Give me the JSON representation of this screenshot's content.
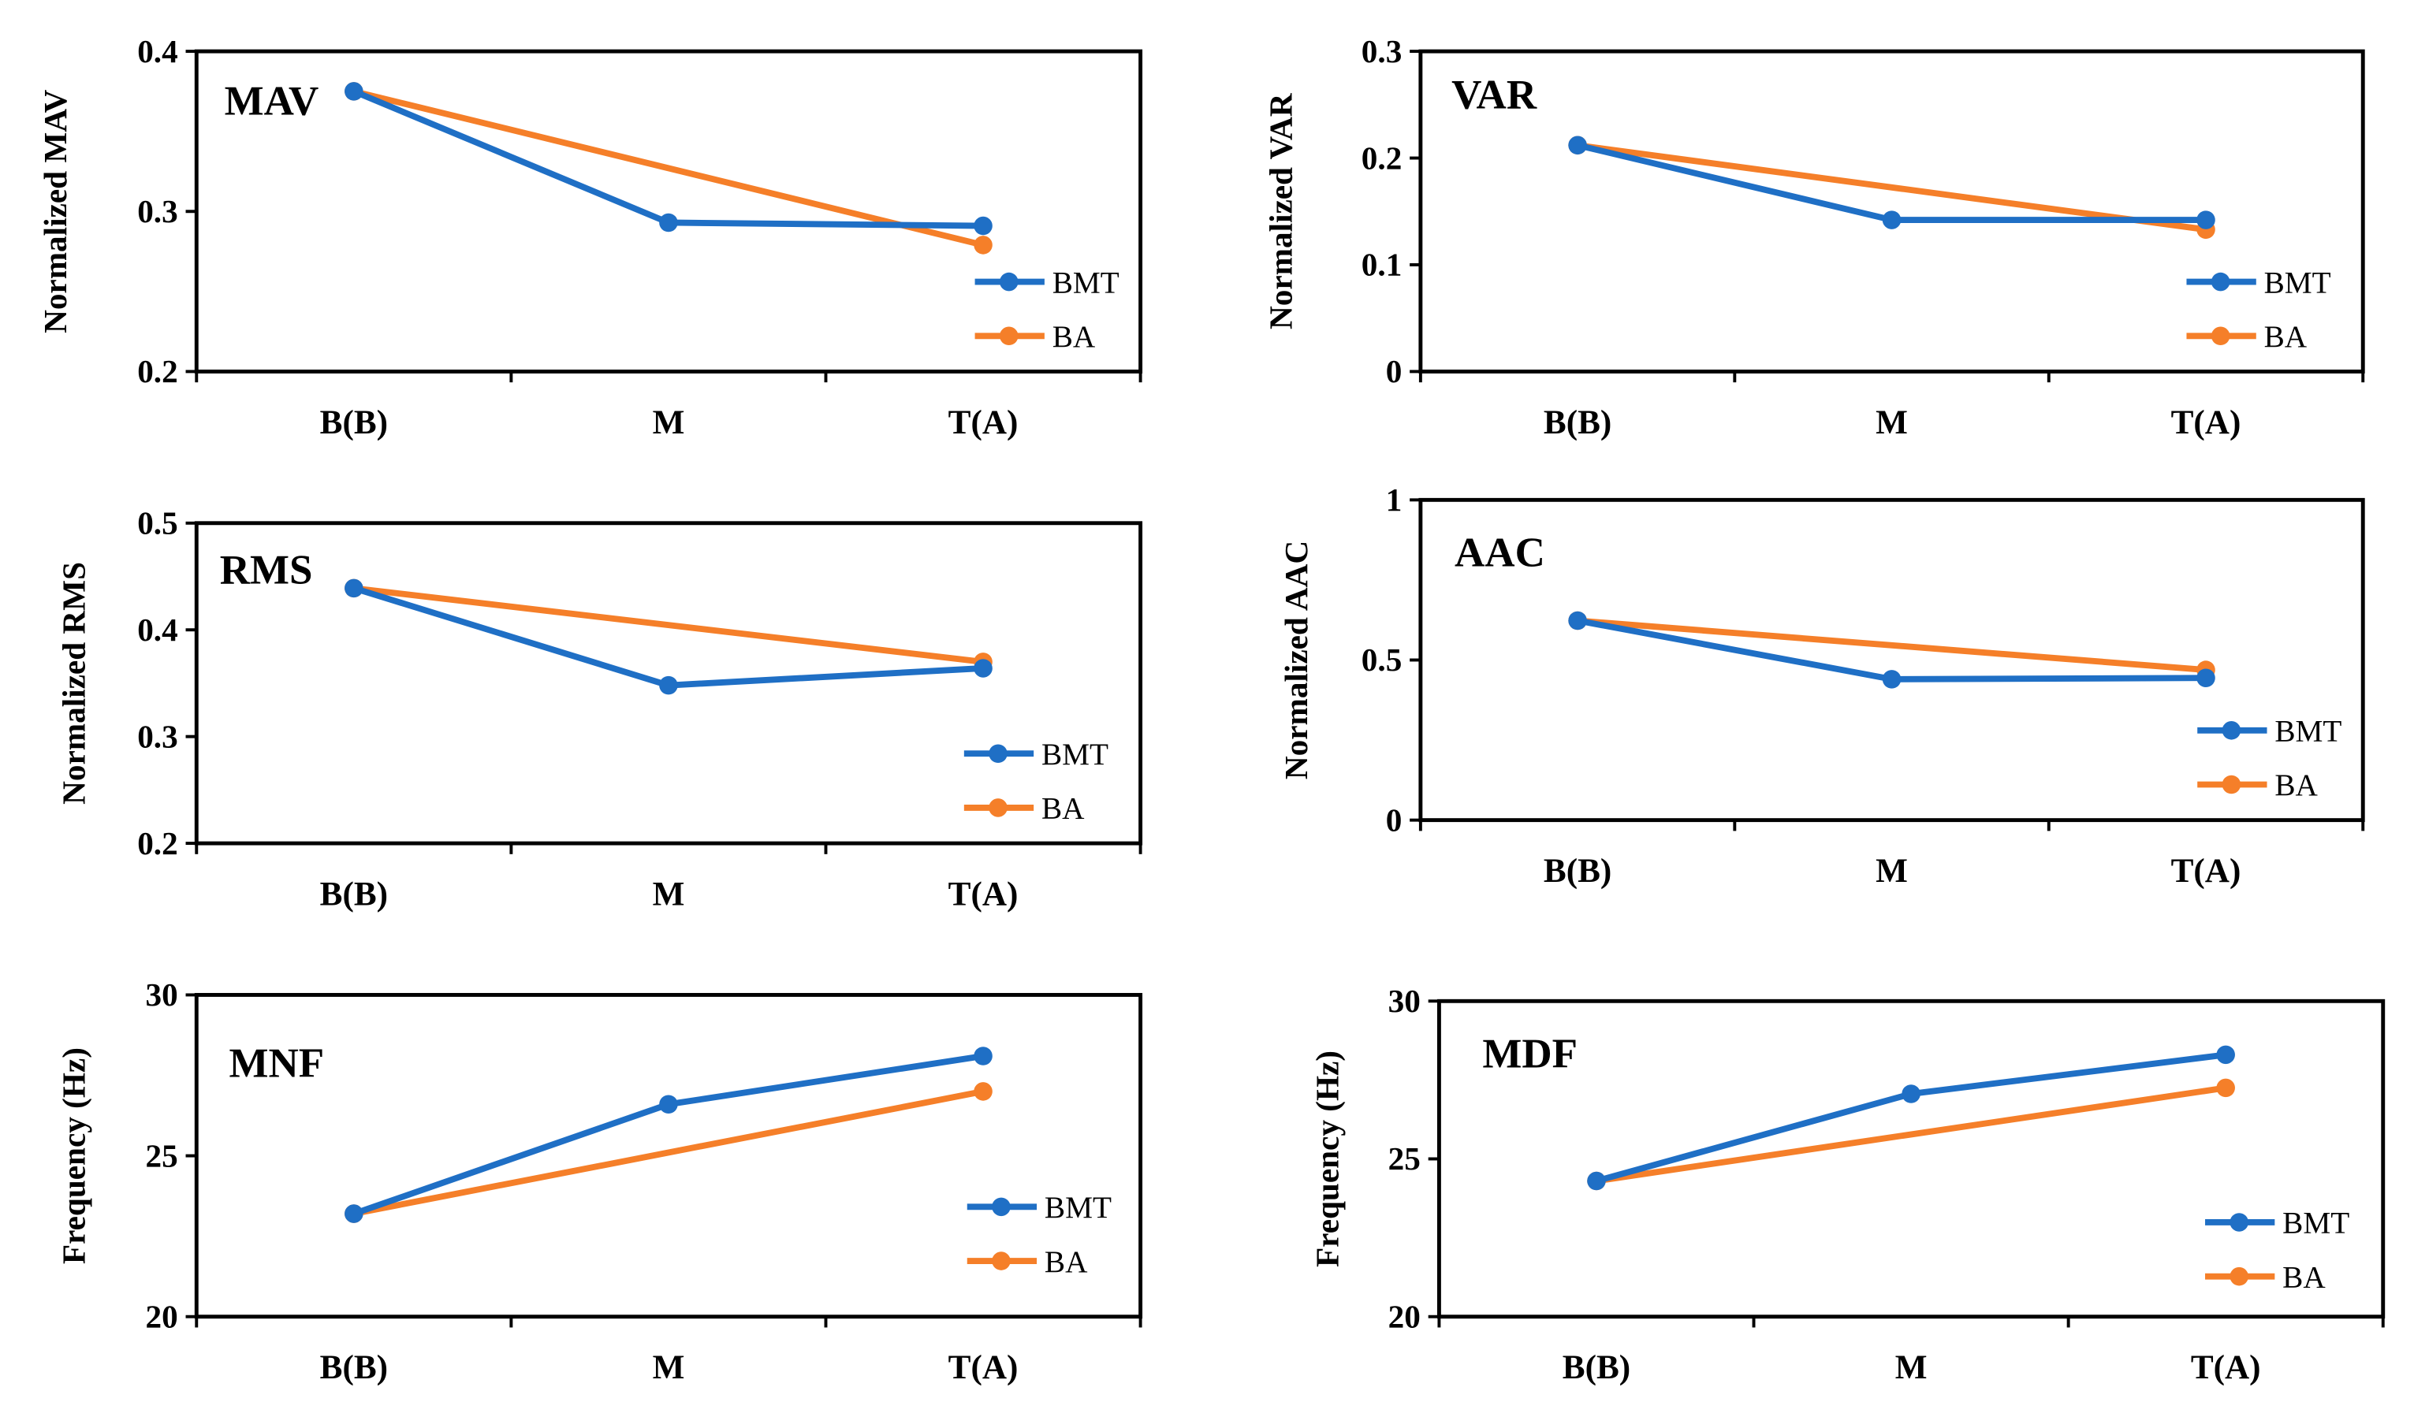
{
  "colors": {
    "BMT": "#1f6fc5",
    "BA": "#f57f29"
  },
  "chart_data": [
    {
      "type": "line",
      "title": "MAV",
      "ylabel": "Normalized MAV",
      "categories": [
        "B(B)",
        "M",
        "T(A)"
      ],
      "ylim": [
        0.2,
        0.4
      ],
      "yticks": [
        "0.2",
        "0.3",
        "0.4"
      ],
      "legend": "bottom-right",
      "series": [
        {
          "name": "BMT",
          "values": [
            0.375,
            0.293,
            0.291
          ]
        },
        {
          "name": "BA",
          "values": [
            0.375,
            null,
            0.279
          ]
        }
      ]
    },
    {
      "type": "line",
      "title": "VAR",
      "ylabel": "Normalized VAR",
      "categories": [
        "B(B)",
        "M",
        "T(A)"
      ],
      "ylim": [
        0,
        0.3
      ],
      "yticks": [
        "0",
        "0.1",
        "0.2",
        "0.3"
      ],
      "legend": "bottom-right",
      "series": [
        {
          "name": "BMT",
          "values": [
            0.212,
            0.142,
            0.142
          ]
        },
        {
          "name": "BA",
          "values": [
            0.212,
            null,
            0.133
          ]
        }
      ]
    },
    {
      "type": "line",
      "title": "RMS",
      "ylabel": "Normalized RMS",
      "categories": [
        "B(B)",
        "M",
        "T(A)"
      ],
      "ylim": [
        0.2,
        0.5
      ],
      "yticks": [
        "0.2",
        "0.3",
        "0.4",
        "0.5"
      ],
      "legend": "bottom-right",
      "series": [
        {
          "name": "BMT",
          "values": [
            0.439,
            0.348,
            0.364
          ]
        },
        {
          "name": "BA",
          "values": [
            0.439,
            null,
            0.37
          ]
        }
      ]
    },
    {
      "type": "line",
      "title": "AAC",
      "ylabel": "Normalized AAC",
      "categories": [
        "B(B)",
        "M",
        "T(A)"
      ],
      "ylim": [
        0,
        1
      ],
      "yticks": [
        "0",
        "0.5",
        "1"
      ],
      "legend": "bottom-right",
      "series": [
        {
          "name": "BMT",
          "values": [
            0.623,
            0.44,
            0.444
          ]
        },
        {
          "name": "BA",
          "values": [
            0.623,
            null,
            0.469
          ]
        }
      ]
    },
    {
      "type": "line",
      "title": "MNF",
      "ylabel": "Frequency (Hz)",
      "categories": [
        "B(B)",
        "M",
        "T(A)"
      ],
      "ylim": [
        20,
        30
      ],
      "yticks": [
        "20",
        "25",
        "30"
      ],
      "legend": "bottom-right",
      "series": [
        {
          "name": "BMT",
          "values": [
            23.2,
            26.6,
            28.1
          ]
        },
        {
          "name": "BA",
          "values": [
            23.2,
            null,
            27.0
          ]
        }
      ]
    },
    {
      "type": "line",
      "title": "MDF",
      "ylabel": "Frequency (Hz)",
      "categories": [
        "B(B)",
        "M",
        "T(A)"
      ],
      "ylim": [
        20,
        30
      ],
      "yticks": [
        "20",
        "25",
        "30"
      ],
      "legend": "bottom-right",
      "series": [
        {
          "name": "BMT",
          "values": [
            24.3,
            27.06,
            28.3
          ]
        },
        {
          "name": "BA",
          "values": [
            24.3,
            null,
            27.25
          ]
        }
      ]
    }
  ]
}
